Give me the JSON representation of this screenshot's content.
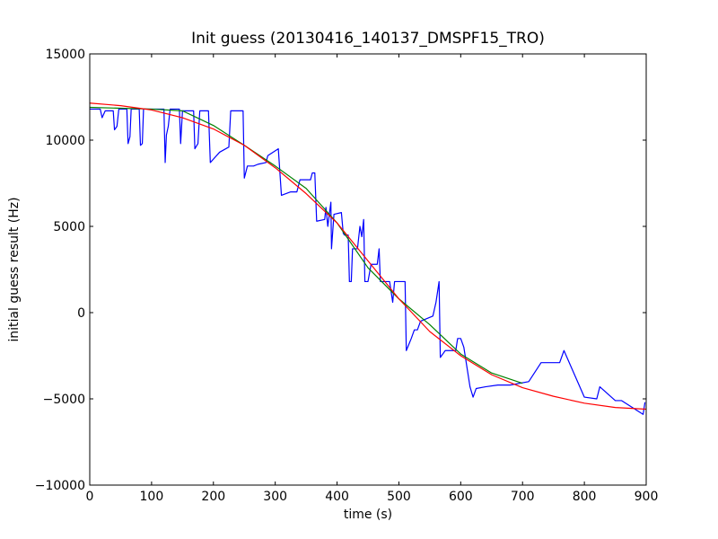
{
  "chart_data": {
    "type": "line",
    "title": "Init guess (20130416_140137_DMSPF15_TRO)",
    "xlabel": "time (s)",
    "ylabel": "initial guess result (Hz)",
    "xlim": [
      0,
      900
    ],
    "ylim": [
      -10000,
      15000
    ],
    "xticks": [
      0,
      100,
      200,
      300,
      400,
      500,
      600,
      700,
      800,
      900
    ],
    "yticks": [
      -10000,
      -5000,
      0,
      5000,
      10000,
      15000
    ],
    "grid": false,
    "series": [
      {
        "color": "#0000ff",
        "points": [
          [
            0,
            11800
          ],
          [
            17,
            11800
          ],
          [
            20,
            11300
          ],
          [
            25,
            11700
          ],
          [
            38,
            11700
          ],
          [
            40,
            10600
          ],
          [
            44,
            10800
          ],
          [
            47,
            11800
          ],
          [
            60,
            11800
          ],
          [
            62,
            9800
          ],
          [
            65,
            10200
          ],
          [
            67,
            11800
          ],
          [
            80,
            11800
          ],
          [
            82,
            9700
          ],
          [
            85,
            9800
          ],
          [
            87,
            11800
          ],
          [
            120,
            11800
          ],
          [
            122,
            8700
          ],
          [
            124,
            10300
          ],
          [
            127,
            10800
          ],
          [
            130,
            11800
          ],
          [
            145,
            11800
          ],
          [
            147,
            9800
          ],
          [
            150,
            11700
          ],
          [
            168,
            11700
          ],
          [
            170,
            9500
          ],
          [
            175,
            9800
          ],
          [
            178,
            11700
          ],
          [
            192,
            11700
          ],
          [
            195,
            8700
          ],
          [
            200,
            8900
          ],
          [
            210,
            9300
          ],
          [
            225,
            9600
          ],
          [
            228,
            11700
          ],
          [
            248,
            11700
          ],
          [
            250,
            7800
          ],
          [
            255,
            8500
          ],
          [
            265,
            8500
          ],
          [
            272,
            8600
          ],
          [
            285,
            8700
          ],
          [
            288,
            9100
          ],
          [
            305,
            9500
          ],
          [
            310,
            6800
          ],
          [
            325,
            7000
          ],
          [
            335,
            7000
          ],
          [
            340,
            7700
          ],
          [
            357,
            7700
          ],
          [
            360,
            8100
          ],
          [
            364,
            8100
          ],
          [
            367,
            5300
          ],
          [
            380,
            5400
          ],
          [
            382,
            6100
          ],
          [
            385,
            5000
          ],
          [
            390,
            6400
          ],
          [
            391,
            3700
          ],
          [
            395,
            5700
          ],
          [
            407,
            5800
          ],
          [
            410,
            4600
          ],
          [
            412,
            4500
          ],
          [
            418,
            4500
          ],
          [
            420,
            1800
          ],
          [
            423,
            1800
          ],
          [
            425,
            3700
          ],
          [
            433,
            3700
          ],
          [
            437,
            5000
          ],
          [
            440,
            4400
          ],
          [
            443,
            5400
          ],
          [
            445,
            1800
          ],
          [
            450,
            1800
          ],
          [
            455,
            2800
          ],
          [
            465,
            2800
          ],
          [
            468,
            3700
          ],
          [
            470,
            1800
          ],
          [
            485,
            1800
          ],
          [
            490,
            600
          ],
          [
            493,
            1800
          ],
          [
            510,
            1800
          ],
          [
            512,
            -2200
          ],
          [
            520,
            -1500
          ],
          [
            525,
            -1000
          ],
          [
            530,
            -1000
          ],
          [
            535,
            -500
          ],
          [
            555,
            -200
          ],
          [
            560,
            600
          ],
          [
            565,
            1800
          ],
          [
            567,
            -2600
          ],
          [
            575,
            -2200
          ],
          [
            592,
            -2200
          ],
          [
            595,
            -1500
          ],
          [
            600,
            -1500
          ],
          [
            605,
            -2000
          ],
          [
            615,
            -4300
          ],
          [
            620,
            -4900
          ],
          [
            625,
            -4400
          ],
          [
            640,
            -4300
          ],
          [
            660,
            -4200
          ],
          [
            680,
            -4200
          ],
          [
            710,
            -4000
          ],
          [
            730,
            -2900
          ],
          [
            760,
            -2900
          ],
          [
            767,
            -2200
          ],
          [
            800,
            -4900
          ],
          [
            820,
            -5000
          ],
          [
            825,
            -4300
          ],
          [
            850,
            -5100
          ],
          [
            860,
            -5100
          ],
          [
            895,
            -5900
          ],
          [
            898,
            -5200
          ]
        ]
      },
      {
        "color": "#008000",
        "points": [
          [
            0,
            11900
          ],
          [
            50,
            11850
          ],
          [
            100,
            11800
          ],
          [
            150,
            11700
          ],
          [
            200,
            10850
          ],
          [
            250,
            9700
          ],
          [
            300,
            8500
          ],
          [
            350,
            7200
          ],
          [
            400,
            5200
          ],
          [
            450,
            2600
          ],
          [
            500,
            800
          ],
          [
            550,
            -700
          ],
          [
            600,
            -2400
          ],
          [
            650,
            -3500
          ],
          [
            700,
            -4100
          ]
        ]
      },
      {
        "color": "#ff0000",
        "points": [
          [
            0,
            12150
          ],
          [
            50,
            12000
          ],
          [
            100,
            11750
          ],
          [
            150,
            11300
          ],
          [
            200,
            10650
          ],
          [
            250,
            9700
          ],
          [
            300,
            8400
          ],
          [
            350,
            6900
          ],
          [
            400,
            5200
          ],
          [
            450,
            3000
          ],
          [
            500,
            800
          ],
          [
            550,
            -1100
          ],
          [
            600,
            -2500
          ],
          [
            650,
            -3600
          ],
          [
            700,
            -4350
          ],
          [
            750,
            -4850
          ],
          [
            800,
            -5250
          ],
          [
            850,
            -5500
          ],
          [
            900,
            -5600
          ]
        ]
      }
    ]
  }
}
